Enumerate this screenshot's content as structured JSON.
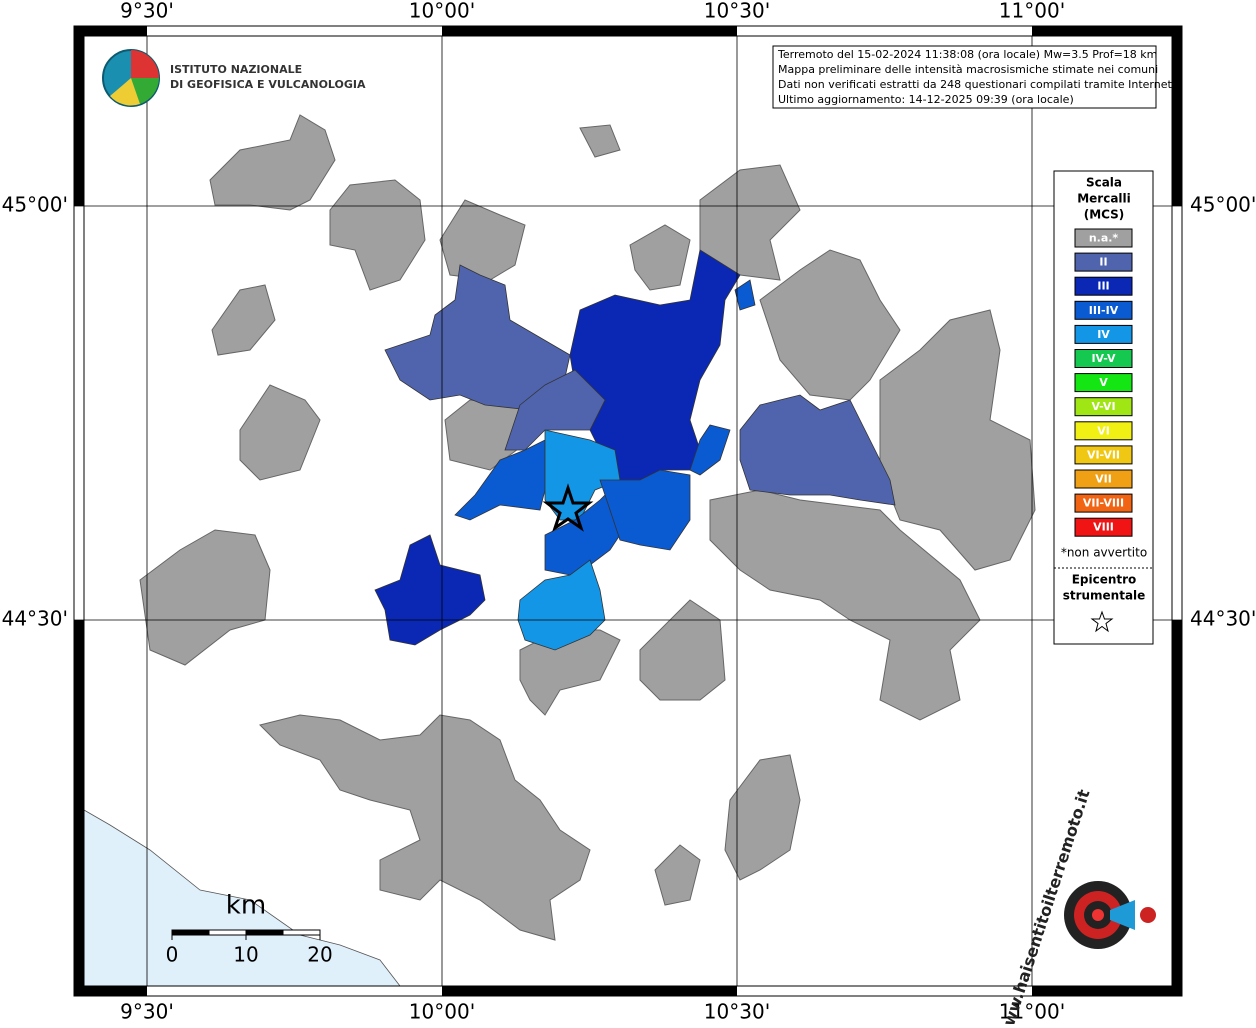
{
  "header": {
    "institute": [
      "ISTITUTO NAZIONALE",
      "DI GEOFISICA E VULCANOLOGIA"
    ]
  },
  "info": [
    "Terremoto del 15-02-2024 11:38:08 (ora locale) Mw=3.5 Prof=18 km",
    "Mappa preliminare delle intensità macrosismiche stimate nei comuni",
    "Dati non verificati estratti da 248 questionari compilati tramite Internet.",
    "Ultimo aggiornamento: 14-12-2025 09:39 (ora locale)"
  ],
  "lon_labels": [
    "9°30'",
    "10°00'",
    "10°30'",
    "11°00'"
  ],
  "lat_labels": [
    "45°00'",
    "44°30'"
  ],
  "legend": {
    "title": [
      "Scala",
      "Mercalli",
      "(MCS)"
    ],
    "items": [
      {
        "label": "n.a.*",
        "color": "#a0a0a0"
      },
      {
        "label": "II",
        "color": "#4f64ad"
      },
      {
        "label": "III",
        "color": "#0a28b4"
      },
      {
        "label": "III-IV",
        "color": "#0a5ad2"
      },
      {
        "label": "IV",
        "color": "#1496e6"
      },
      {
        "label": "IV-V",
        "color": "#14c850"
      },
      {
        "label": "V",
        "color": "#14e614"
      },
      {
        "label": "V-VI",
        "color": "#a0e614"
      },
      {
        "label": "VI",
        "color": "#f0f014"
      },
      {
        "label": "VI-VII",
        "color": "#f0c814"
      },
      {
        "label": "VII",
        "color": "#f0a014"
      },
      {
        "label": "VII-VIII",
        "color": "#f06414"
      },
      {
        "label": "VIII",
        "color": "#f01414"
      }
    ],
    "note": "*non avvertito",
    "epicenter": [
      "Epicentro",
      "strumentale"
    ]
  },
  "scale": {
    "unit": "km",
    "ticks": [
      0,
      10,
      20
    ]
  },
  "site": "www.haisentitoilterremoto.it"
}
